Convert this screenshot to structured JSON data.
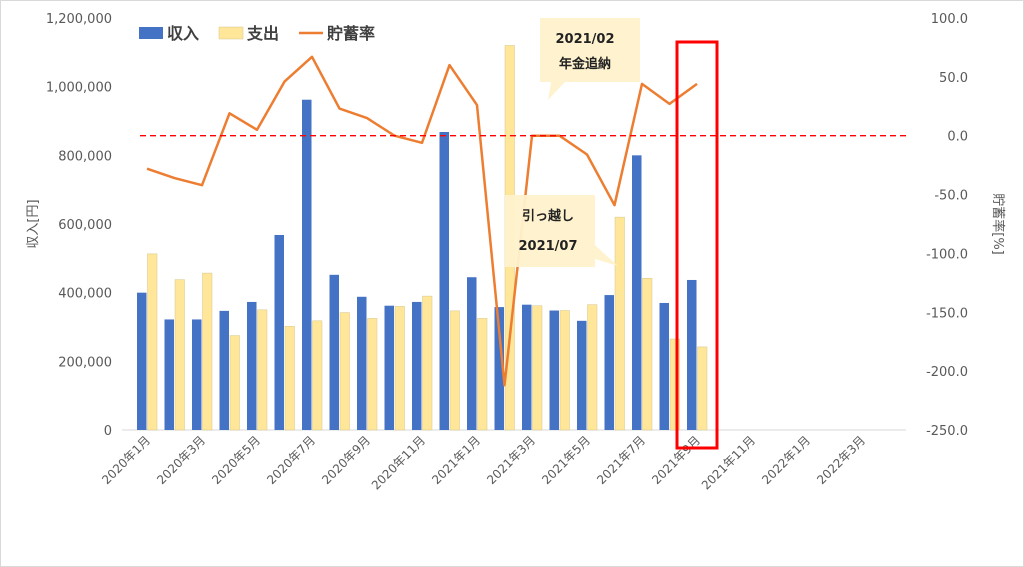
{
  "chart_data": {
    "type": "bar",
    "categories": [
      "2020年1月",
      "2020年2月",
      "2020年3月",
      "2020年4月",
      "2020年5月",
      "2020年6月",
      "2020年7月",
      "2020年8月",
      "2020年9月",
      "2020年10月",
      "2020年11月",
      "2020年12月",
      "2021年1月",
      "2021年2月",
      "2021年3月",
      "2021年4月",
      "2021年5月",
      "2021年6月",
      "2021年7月",
      "2021年8月",
      "2021年9月",
      "2021年10月",
      "2021年11月",
      "2021年12月",
      "2022年1月",
      "2022年2月",
      "2022年3月",
      "2022年4月"
    ],
    "x_tick_labels": [
      "2020年1月",
      "2020年3月",
      "2020年5月",
      "2020年7月",
      "2020年9月",
      "2020年11月",
      "2021年1月",
      "2021年3月",
      "2021年5月",
      "2021年7月",
      "2021年9月",
      "2021年11月",
      "2022年1月",
      "2022年3月"
    ],
    "series": [
      {
        "name": "収入",
        "type": "bar",
        "axis": "left",
        "color": "#4472C4",
        "values": [
          400000,
          322000,
          322000,
          347000,
          373000,
          568000,
          962000,
          452000,
          388000,
          362000,
          373000,
          868000,
          445000,
          358000,
          365000,
          348000,
          318000,
          393000,
          800000,
          370000,
          437000,
          null,
          null,
          null,
          null,
          null,
          null,
          null
        ]
      },
      {
        "name": "支出",
        "type": "bar",
        "axis": "left",
        "color": "#FFE699",
        "values": [
          513000,
          438000,
          457000,
          275000,
          350000,
          302000,
          318000,
          342000,
          325000,
          360000,
          390000,
          347000,
          325000,
          1120000,
          362000,
          348000,
          365000,
          620000,
          442000,
          265000,
          242000,
          null,
          null,
          null,
          null,
          null,
          null,
          null
        ]
      },
      {
        "name": "貯蓄率",
        "type": "line",
        "axis": "right",
        "color": "#ED7D31",
        "values": [
          -28,
          -36,
          -42,
          19,
          5,
          46,
          67,
          23,
          15,
          0,
          -6,
          60,
          26,
          -212,
          0,
          0,
          -16,
          -59,
          44,
          27,
          44,
          null,
          null,
          null,
          null,
          null,
          null,
          null
        ]
      }
    ],
    "ylabel": "収入[円]",
    "y2label": "貯蓄率[%]",
    "ylim": [
      0,
      1200000
    ],
    "y_ticks": [
      "0",
      "200,000",
      "400,000",
      "600,000",
      "800,000",
      "1,000,000",
      "1,200,000"
    ],
    "y2lim": [
      -250,
      100
    ],
    "y2_ticks": [
      "-250.0",
      "-200.0",
      "-150.0",
      "-100.0",
      "-50.0",
      "0.0",
      "50.0",
      "100.0"
    ],
    "reference_line": {
      "axis": "right",
      "value": 0,
      "color": "#FF0000",
      "style": "dashed"
    },
    "legend": {
      "placement": "top-left",
      "entries": [
        "収入",
        "支出",
        "貯蓄率"
      ]
    },
    "annotations": [
      {
        "lines": [
          "2021/02",
          "年金追納"
        ],
        "target_category": "2021年2月"
      },
      {
        "lines": [
          "引っ越し",
          "2021/07"
        ],
        "target_category": "2021年6月"
      }
    ],
    "highlight": {
      "category": "2021年9月",
      "color": "#FF0000"
    },
    "grid": false
  }
}
